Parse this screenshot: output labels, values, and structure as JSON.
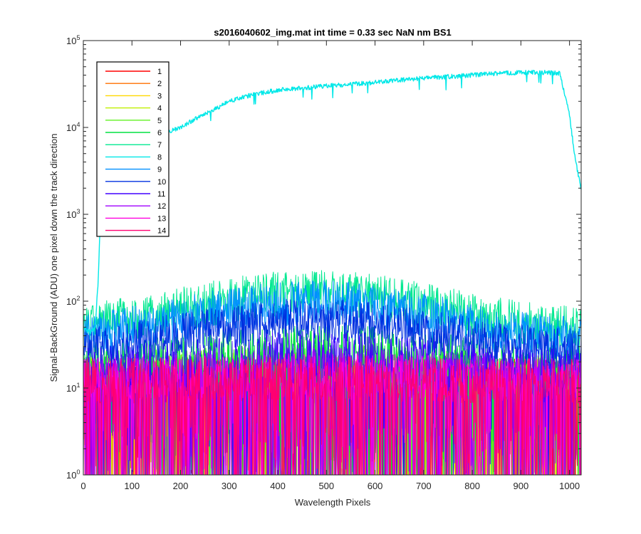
{
  "chart_data": {
    "type": "line",
    "title": "s2016040602_img.mat int time = 0.33 sec  NaN nm BS1",
    "xlabel": "Wavelength Pixels",
    "ylabel": "Signal-BackGround (ADU) one pixel down the track direction",
    "xlim": [
      0,
      1024
    ],
    "ylim": [
      1,
      100000
    ],
    "yscale": "log",
    "x_ticks": [
      "0",
      "100",
      "200",
      "300",
      "400",
      "500",
      "600",
      "700",
      "800",
      "900",
      "1000"
    ],
    "y_ticks": [
      {
        "base": "10",
        "exp": "0"
      },
      {
        "base": "10",
        "exp": "1"
      },
      {
        "base": "10",
        "exp": "2"
      },
      {
        "base": "10",
        "exp": "3"
      },
      {
        "base": "10",
        "exp": "4"
      },
      {
        "base": "10",
        "exp": "5"
      }
    ],
    "grid": false,
    "legend_position": "top-left",
    "series": [
      {
        "name": "1",
        "color": "#ff0000",
        "profile": "noise",
        "baseline": 12,
        "peak": 12
      },
      {
        "name": "2",
        "color": "#ff7000",
        "profile": "noise",
        "baseline": 12,
        "peak": 13
      },
      {
        "name": "3",
        "color": "#ffd800",
        "profile": "noise",
        "baseline": 12,
        "peak": 14
      },
      {
        "name": "4",
        "color": "#c0f000",
        "profile": "noise",
        "baseline": 13,
        "peak": 16
      },
      {
        "name": "5",
        "color": "#60f020",
        "profile": "noise",
        "baseline": 14,
        "peak": 18
      },
      {
        "name": "6",
        "color": "#00e040",
        "profile": "noise",
        "baseline": 18,
        "peak": 30
      },
      {
        "name": "7",
        "color": "#00e890",
        "profile": "noise",
        "baseline": 45,
        "peak": 125
      },
      {
        "name": "8",
        "color": "#00e8e8",
        "profile": "main",
        "x": [
          0,
          8,
          16,
          24,
          30,
          34,
          38,
          42,
          46,
          50,
          60,
          80,
          100,
          130,
          160,
          200,
          230,
          260,
          300,
          350,
          400,
          450,
          500,
          550,
          600,
          650,
          700,
          750,
          800,
          850,
          900,
          950,
          980,
          1000,
          1010,
          1024
        ],
        "values": [
          50,
          45,
          45,
          48,
          150,
          600,
          1800,
          3000,
          4200,
          5000,
          6000,
          6800,
          7200,
          7600,
          8200,
          10000,
          12500,
          15000,
          20000,
          24000,
          27000,
          28500,
          30000,
          31500,
          33000,
          35000,
          37000,
          38500,
          40000,
          42000,
          43000,
          43000,
          42000,
          14000,
          5000,
          1900
        ]
      },
      {
        "name": "9",
        "color": "#0090ff",
        "profile": "noise",
        "baseline": 35,
        "peak": 95
      },
      {
        "name": "10",
        "color": "#0030e0",
        "profile": "noise",
        "baseline": 25,
        "peak": 60
      },
      {
        "name": "11",
        "color": "#4000ff",
        "profile": "noise",
        "baseline": 15,
        "peak": 25
      },
      {
        "name": "12",
        "color": "#a000ff",
        "profile": "noise",
        "baseline": 13,
        "peak": 16
      },
      {
        "name": "13",
        "color": "#ff00e0",
        "profile": "noise",
        "baseline": 12,
        "peak": 14
      },
      {
        "name": "14",
        "color": "#ff0070",
        "profile": "noise",
        "baseline": 12,
        "peak": 13
      }
    ]
  }
}
